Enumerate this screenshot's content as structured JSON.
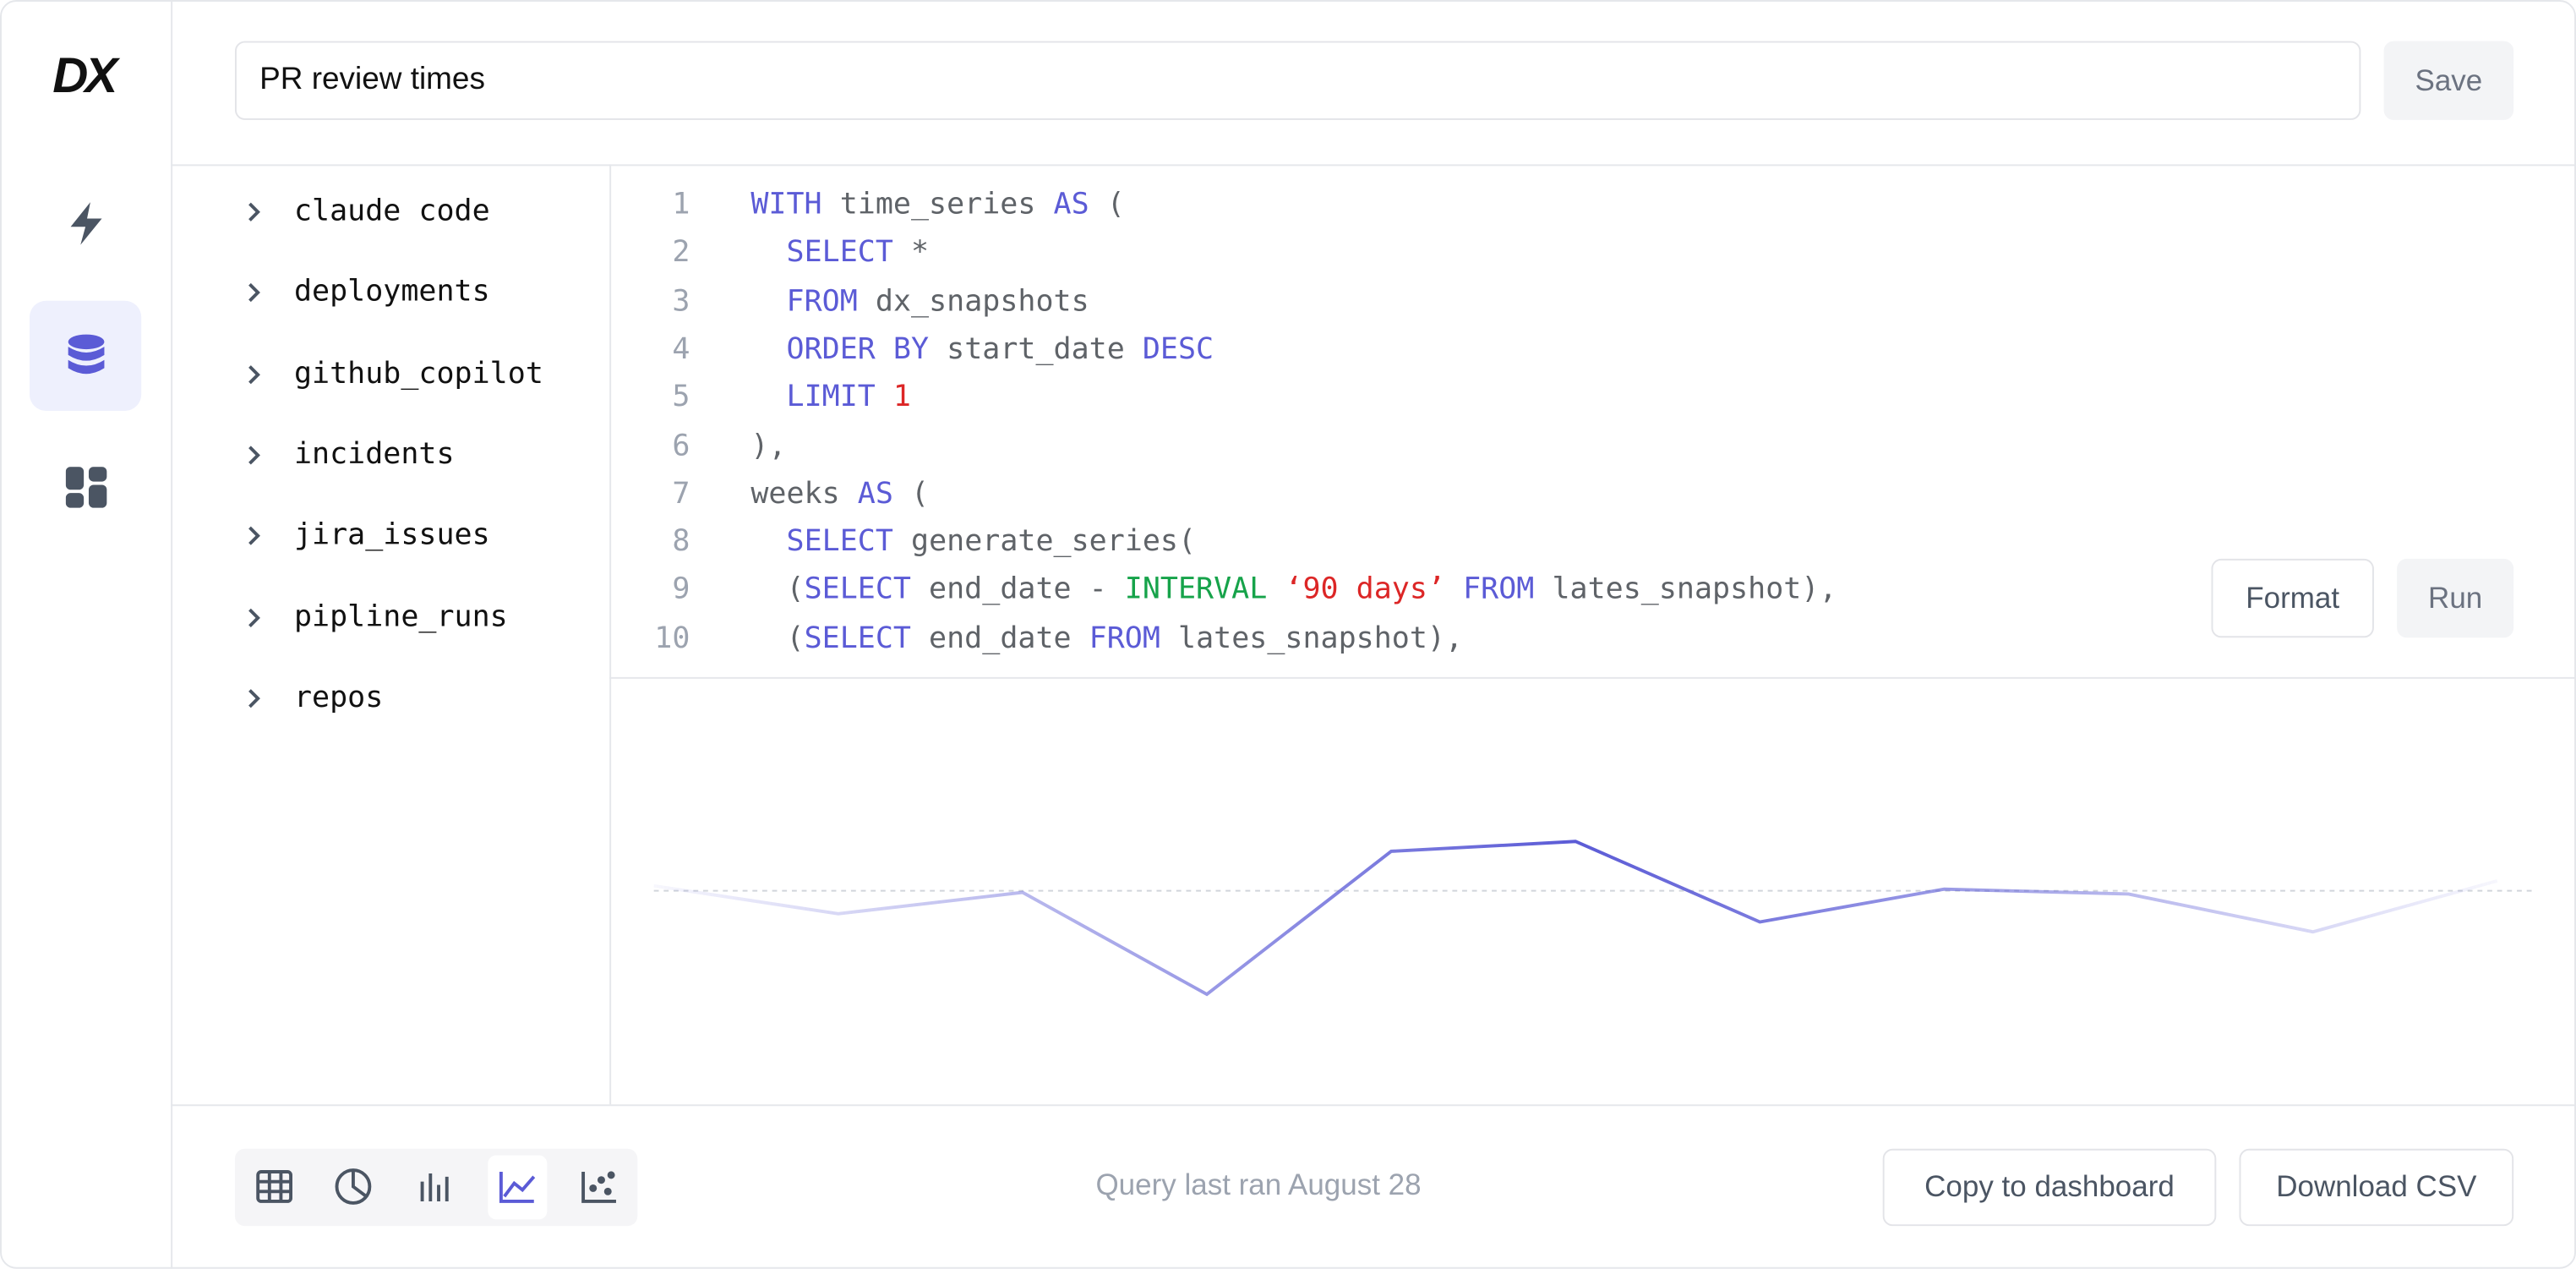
{
  "logo": "DX",
  "query_title": "PR review times",
  "save_button": "Save",
  "tables": [
    "claude code",
    "deployments",
    "github_copilot",
    "incidents",
    "jira_issues",
    "pipline_runs",
    "repos"
  ],
  "editor": {
    "line_numbers": [
      1,
      2,
      3,
      4,
      5,
      6,
      7,
      8,
      9,
      10
    ],
    "lines": [
      [
        {
          "text": "WITH",
          "style": "keyword"
        },
        {
          "text": " time_series ",
          "style": "plain"
        },
        {
          "text": "AS",
          "style": "keyword"
        },
        {
          "text": " (",
          "style": "plain"
        }
      ],
      [
        {
          "text": "  ",
          "style": "plain"
        },
        {
          "text": "SELECT",
          "style": "keyword"
        },
        {
          "text": " *",
          "style": "plain"
        }
      ],
      [
        {
          "text": "  ",
          "style": "plain"
        },
        {
          "text": "FROM",
          "style": "keyword"
        },
        {
          "text": " dx_snapshots",
          "style": "plain"
        }
      ],
      [
        {
          "text": "  ",
          "style": "plain"
        },
        {
          "text": "ORDER BY",
          "style": "keyword"
        },
        {
          "text": " start_date ",
          "style": "plain"
        },
        {
          "text": "DESC",
          "style": "keyword"
        }
      ],
      [
        {
          "text": "  ",
          "style": "plain"
        },
        {
          "text": "LIMIT",
          "style": "keyword"
        },
        {
          "text": " ",
          "style": "plain"
        },
        {
          "text": "1",
          "style": "number"
        }
      ],
      [
        {
          "text": "),",
          "style": "plain"
        }
      ],
      [
        {
          "text": "weeks ",
          "style": "plain"
        },
        {
          "text": "AS",
          "style": "keyword"
        },
        {
          "text": " (",
          "style": "plain"
        }
      ],
      [
        {
          "text": "  ",
          "style": "plain"
        },
        {
          "text": "SELECT",
          "style": "keyword"
        },
        {
          "text": " generate_series(",
          "style": "plain"
        }
      ],
      [
        {
          "text": "  (",
          "style": "plain"
        },
        {
          "text": "SELECT",
          "style": "keyword"
        },
        {
          "text": " end_date - ",
          "style": "plain"
        },
        {
          "text": "INTERVAL",
          "style": "function"
        },
        {
          "text": " ",
          "style": "plain"
        },
        {
          "text": "‘90 days’",
          "style": "string"
        },
        {
          "text": " ",
          "style": "plain"
        },
        {
          "text": "FROM",
          "style": "keyword"
        },
        {
          "text": " lates_snapshot),",
          "style": "plain"
        }
      ],
      [
        {
          "text": "  (",
          "style": "plain"
        },
        {
          "text": "SELECT",
          "style": "keyword"
        },
        {
          "text": " end_date ",
          "style": "plain"
        },
        {
          "text": "FROM",
          "style": "keyword"
        },
        {
          "text": " lates_snapshot),",
          "style": "plain"
        }
      ]
    ]
  },
  "format_button": "Format",
  "run_button": "Run",
  "chart_data": {
    "type": "line",
    "values": [
      8.2,
      6.5,
      7.8,
      1.6,
      10.3,
      10.9,
      6.0,
      8.0,
      7.7,
      5.4,
      8.5
    ],
    "ylim": [
      0,
      12
    ],
    "color": "#5b5bd6"
  },
  "status": "Query last ran August 28",
  "copy_button": "Copy to dashboard",
  "download_button": "Download CSV"
}
